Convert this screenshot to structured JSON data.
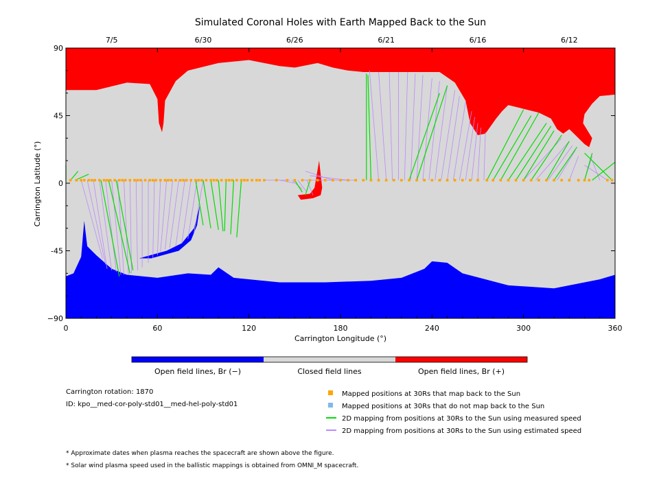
{
  "chart_data": {
    "type": "map",
    "title": "Simulated Coronal Holes with Earth Mapped Back to the Sun",
    "xlabel": "Carrington Longitude (°)",
    "ylabel": "Carrington Latitude (°)",
    "xlim": [
      0,
      360
    ],
    "ylim": [
      -90,
      90
    ],
    "x_ticks": [
      0,
      60,
      120,
      180,
      240,
      300,
      360
    ],
    "y_ticks": [
      {
        "value": 90,
        "label": "90"
      },
      {
        "value": 45,
        "label": "45"
      },
      {
        "value": 0,
        "label": "0"
      },
      {
        "value": -45,
        "label": "-45"
      },
      {
        "value": -90,
        "label": "−90"
      }
    ],
    "top_dates": [
      {
        "label": "7/5",
        "lon": 30
      },
      {
        "label": "6/30",
        "lon": 90
      },
      {
        "label": "6/26",
        "lon": 150
      },
      {
        "label": "6/21",
        "lon": 210
      },
      {
        "label": "6/16",
        "lon": 270
      },
      {
        "label": "6/12",
        "lon": 330
      }
    ],
    "regions": {
      "north_open": {
        "color": "#ff0000",
        "boundary": [
          [
            0,
            62
          ],
          [
            20,
            62
          ],
          [
            40,
            67
          ],
          [
            55,
            66
          ],
          [
            60,
            56
          ],
          [
            61,
            40
          ],
          [
            63,
            34
          ],
          [
            64,
            40
          ],
          [
            65,
            55
          ],
          [
            72,
            68
          ],
          [
            80,
            75
          ],
          [
            100,
            80
          ],
          [
            120,
            82
          ],
          [
            140,
            78
          ],
          [
            150,
            77
          ],
          [
            165,
            80
          ],
          [
            175,
            77
          ],
          [
            185,
            75
          ],
          [
            195,
            74
          ],
          [
            215,
            74
          ],
          [
            235,
            74
          ],
          [
            245,
            74
          ],
          [
            255,
            67
          ],
          [
            262,
            55
          ],
          [
            265,
            40
          ],
          [
            270,
            32
          ],
          [
            275,
            33
          ],
          [
            282,
            43
          ],
          [
            286,
            48
          ],
          [
            290,
            52
          ],
          [
            298,
            50
          ],
          [
            310,
            47
          ],
          [
            318,
            43
          ],
          [
            322,
            36
          ],
          [
            326,
            33
          ],
          [
            330,
            36
          ],
          [
            335,
            31
          ],
          [
            340,
            26
          ],
          [
            343,
            24
          ],
          [
            345,
            30
          ],
          [
            339,
            40
          ],
          [
            340,
            46
          ],
          [
            345,
            53
          ],
          [
            350,
            58
          ],
          [
            360,
            59
          ]
        ]
      },
      "south_open": {
        "color": "#0000ff",
        "boundary": [
          [
            0,
            -62
          ],
          [
            5,
            -60
          ],
          [
            10,
            -49
          ],
          [
            12,
            -25
          ],
          [
            14,
            -42
          ],
          [
            20,
            -48
          ],
          [
            30,
            -57
          ],
          [
            40,
            -61
          ],
          [
            60,
            -63
          ],
          [
            80,
            -60
          ],
          [
            95,
            -61
          ],
          [
            100,
            -56
          ],
          [
            110,
            -63
          ],
          [
            140,
            -66
          ],
          [
            170,
            -66
          ],
          [
            200,
            -65
          ],
          [
            220,
            -63
          ],
          [
            235,
            -57
          ],
          [
            240,
            -52
          ],
          [
            250,
            -53
          ],
          [
            260,
            -60
          ],
          [
            290,
            -68
          ],
          [
            320,
            -70
          ],
          [
            340,
            -66
          ],
          [
            350,
            -64
          ],
          [
            360,
            -61
          ]
        ]
      },
      "south_mid_hole": {
        "color": "#0000ff",
        "boundary": [
          [
            48,
            -50
          ],
          [
            66,
            -45
          ],
          [
            76,
            -40
          ],
          [
            84,
            -30
          ],
          [
            88,
            -14
          ],
          [
            86,
            -28
          ],
          [
            82,
            -38
          ],
          [
            74,
            -45
          ],
          [
            56,
            -50
          ]
        ]
      },
      "central_red_hole": {
        "color": "#ff0000",
        "boundary": [
          [
            152,
            -8
          ],
          [
            160,
            -7
          ],
          [
            163,
            -3
          ],
          [
            166,
            15
          ],
          [
            168,
            -3
          ],
          [
            167,
            -8
          ],
          [
            162,
            -10
          ],
          [
            154,
            -11
          ]
        ]
      }
    },
    "mapped_points": {
      "name": "Mapped positions at 30Rs that map back to the Sun",
      "color": "#ffa500",
      "lon": [
        3,
        7,
        10,
        12,
        15,
        17,
        19,
        22,
        25,
        27,
        29,
        32,
        35,
        37,
        39,
        42,
        45,
        47,
        49,
        52,
        55,
        57,
        59,
        62,
        65,
        67,
        69,
        72,
        75,
        77,
        79,
        82,
        85,
        87,
        89,
        92,
        95,
        97,
        99,
        102,
        105,
        107,
        109,
        112,
        115,
        117,
        119,
        122,
        125,
        127,
        130,
        138,
        145,
        150,
        155,
        160,
        165,
        170,
        175,
        180,
        185,
        190,
        195,
        200,
        205,
        210,
        215,
        220,
        225,
        230,
        235,
        240,
        245,
        250,
        255,
        260,
        265,
        270,
        276,
        280,
        285,
        290,
        295,
        300,
        305,
        310,
        315,
        320,
        325,
        330,
        336,
        340,
        343,
        355,
        358
      ]
    },
    "measured_mappings": {
      "name": "2D mapping from positions at 30Rs to the Sun using measured speed",
      "color": "#00dd00",
      "segments": [
        [
          0,
          2,
          0,
          12
        ],
        [
          3,
          2,
          8,
          8
        ],
        [
          6,
          2,
          15,
          6
        ],
        [
          23,
          2,
          35,
          -62
        ],
        [
          28,
          2,
          42,
          -60
        ],
        [
          33,
          2,
          44,
          -58
        ],
        [
          85,
          2,
          90,
          -28
        ],
        [
          90,
          2,
          95,
          -30
        ],
        [
          95,
          2,
          100,
          -31
        ],
        [
          100,
          2,
          103,
          -32
        ],
        [
          105,
          2,
          104,
          -32
        ],
        [
          110,
          2,
          108,
          -34
        ],
        [
          115,
          2,
          112,
          -36
        ],
        [
          150,
          2,
          155,
          -6
        ],
        [
          160,
          2,
          157,
          -8
        ],
        [
          197,
          2,
          197,
          73
        ],
        [
          200,
          2,
          198,
          72
        ],
        [
          225,
          2,
          245,
          60
        ],
        [
          230,
          2,
          250,
          65
        ],
        [
          276,
          2,
          300,
          49
        ],
        [
          280,
          2,
          305,
          45
        ],
        [
          285,
          2,
          310,
          47
        ],
        [
          290,
          2,
          315,
          40
        ],
        [
          295,
          2,
          318,
          38
        ],
        [
          300,
          2,
          320,
          35
        ],
        [
          305,
          2,
          325,
          32
        ],
        [
          315,
          2,
          330,
          28
        ],
        [
          320,
          2,
          335,
          24
        ],
        [
          340,
          2,
          345,
          20
        ],
        [
          345,
          2,
          360,
          14
        ],
        [
          358,
          2,
          340,
          20
        ]
      ]
    },
    "estimated_mappings": {
      "name": "2D mapping from positions at 30Rs to the Sun using estimated speed",
      "color": "#bb88ff",
      "segments": [
        [
          10,
          2,
          24,
          -50
        ],
        [
          14,
          2,
          26,
          -54
        ],
        [
          18,
          2,
          27,
          -57
        ],
        [
          22,
          2,
          30,
          -58
        ],
        [
          26,
          2,
          33,
          -59
        ],
        [
          30,
          2,
          36,
          -61
        ],
        [
          34,
          2,
          38,
          -61
        ],
        [
          38,
          2,
          41,
          -61
        ],
        [
          42,
          2,
          43,
          -60
        ],
        [
          46,
          2,
          47,
          -58
        ],
        [
          50,
          2,
          50,
          -56
        ],
        [
          54,
          2,
          54,
          -53
        ],
        [
          58,
          2,
          57,
          -50
        ],
        [
          62,
          2,
          60,
          -48
        ],
        [
          66,
          2,
          62,
          -46
        ],
        [
          70,
          2,
          65,
          -44
        ],
        [
          74,
          2,
          68,
          -43
        ],
        [
          78,
          2,
          72,
          -42
        ],
        [
          82,
          2,
          76,
          -40
        ],
        [
          86,
          2,
          80,
          -37
        ],
        [
          90,
          2,
          84,
          -33
        ],
        [
          130,
          2,
          147,
          2
        ],
        [
          140,
          2,
          150,
          0
        ],
        [
          148,
          2,
          155,
          -4
        ],
        [
          152,
          2,
          158,
          -6
        ],
        [
          158,
          2,
          162,
          -8
        ],
        [
          175,
          2,
          157,
          8
        ],
        [
          185,
          2,
          160,
          5
        ],
        [
          190,
          2,
          155,
          2
        ],
        [
          205,
          2,
          199,
          75
        ],
        [
          210,
          2,
          205,
          74
        ],
        [
          214,
          2,
          212,
          74
        ],
        [
          218,
          2,
          218,
          74
        ],
        [
          222,
          2,
          224,
          74
        ],
        [
          226,
          2,
          229,
          73
        ],
        [
          230,
          2,
          234,
          72
        ],
        [
          234,
          2,
          240,
          70
        ],
        [
          238,
          2,
          245,
          68
        ],
        [
          242,
          2,
          250,
          65
        ],
        [
          246,
          2,
          255,
          62
        ],
        [
          250,
          2,
          258,
          58
        ],
        [
          254,
          2,
          262,
          54
        ],
        [
          258,
          2,
          266,
          48
        ],
        [
          262,
          2,
          268,
          44
        ],
        [
          266,
          2,
          270,
          40
        ],
        [
          270,
          2,
          272,
          37
        ],
        [
          274,
          2,
          275,
          34
        ],
        [
          300,
          2,
          325,
          30
        ],
        [
          308,
          2,
          330,
          28
        ],
        [
          316,
          2,
          332,
          25
        ],
        [
          322,
          2,
          334,
          22
        ],
        [
          330,
          2,
          336,
          18
        ],
        [
          340,
          2,
          345,
          18
        ],
        [
          350,
          2,
          345,
          15
        ],
        [
          355,
          2,
          340,
          12
        ]
      ]
    },
    "colorbar": {
      "segments": [
        {
          "label": "Open field lines, Br (−)",
          "color": "#0000ff"
        },
        {
          "label": "Closed field lines",
          "color": "#d8d8d8"
        },
        {
          "label": "Open field lines, Br (+)",
          "color": "#ff0000"
        }
      ]
    },
    "legend": [
      {
        "label": "Mapped positions at 30Rs that map back to the Sun",
        "kind": "square",
        "color": "#ffa500"
      },
      {
        "label": "Mapped positions at 30Rs that do not map back to the Sun",
        "kind": "square",
        "color": "#7eb9f0"
      },
      {
        "label": "2D mapping from positions at 30Rs to the Sun using measured speed",
        "kind": "line",
        "color": "#00dd00"
      },
      {
        "label": "2D mapping from positions at 30Rs to the Sun using estimated speed",
        "kind": "line",
        "color": "#bb88ff"
      }
    ],
    "background_color": "#d8d8d8"
  },
  "info": {
    "rotation": "Carrington rotation: 1870",
    "id": "ID: kpo__med-cor-poly-std01__med-hel-poly-std01"
  },
  "footnotes": {
    "note1": "* Approximate dates when plasma reaches the spacecraft are shown above the figure.",
    "note2": "* Solar wind plasma speed used in the ballistic mappings is obtained from OMNI_M spacecraft."
  }
}
